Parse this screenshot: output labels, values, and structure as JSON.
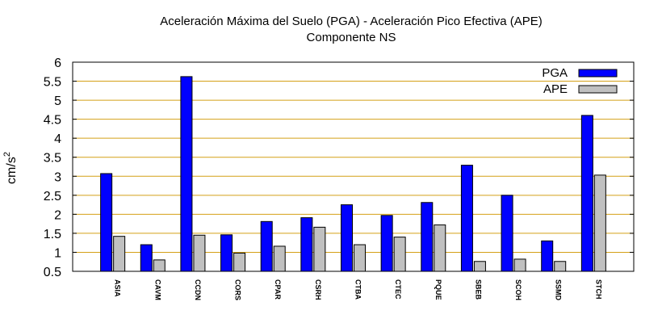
{
  "chart_data": {
    "type": "bar",
    "title": "Aceleración Máxima del Suelo (PGA) -  Aceleración Pico Efectiva (APE)",
    "subtitle": "Componente NS",
    "ylabel": "cm/s",
    "ylabel_sup": "2",
    "xlabel": "",
    "ylim": [
      0.5,
      6
    ],
    "yticks": [
      0.5,
      1,
      1.5,
      2,
      2.5,
      3,
      3.5,
      4,
      4.5,
      5,
      5.5,
      6
    ],
    "ytick_labels": [
      "0.5",
      "1",
      "1.5",
      "2",
      "2.5",
      "3",
      "3.5",
      "4",
      "4.5",
      "5",
      "5.5",
      "6"
    ],
    "grid": "horizontal",
    "legend_position": "top-right",
    "categories": [
      "ASIA",
      "CAVM",
      "CCDN",
      "CORS",
      "CPAR",
      "CSRH",
      "CTBA",
      "CTEC",
      "PQUE",
      "SBEB",
      "SCOH",
      "SSMD",
      "STCH"
    ],
    "series": [
      {
        "name": "PGA",
        "color": "#0000ff",
        "values": [
          3.07,
          1.2,
          5.62,
          1.46,
          1.81,
          1.91,
          2.25,
          1.97,
          2.31,
          3.29,
          2.5,
          1.3,
          4.6
        ]
      },
      {
        "name": "APE",
        "color": "#c0c0c0",
        "values": [
          1.42,
          0.8,
          1.45,
          0.98,
          1.16,
          1.66,
          1.2,
          1.4,
          1.72,
          0.76,
          0.82,
          0.76,
          3.03
        ]
      }
    ]
  }
}
